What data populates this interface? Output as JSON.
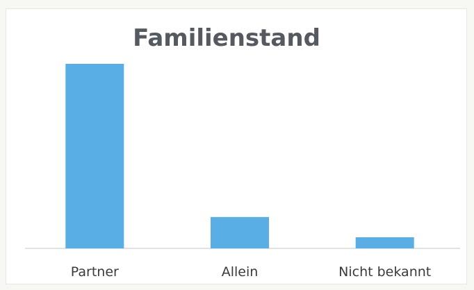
{
  "chart_data": {
    "type": "bar",
    "title": "Familienstand",
    "xlabel": "",
    "ylabel": "",
    "categories": [
      "Partner",
      "Allein",
      "Nicht bekannt"
    ],
    "values": [
      100,
      17,
      6
    ],
    "ylim": [
      0,
      100
    ],
    "grid": false,
    "legend": "none",
    "bar_color": "#5aaee6",
    "axis_color": "#d9d9d9"
  }
}
